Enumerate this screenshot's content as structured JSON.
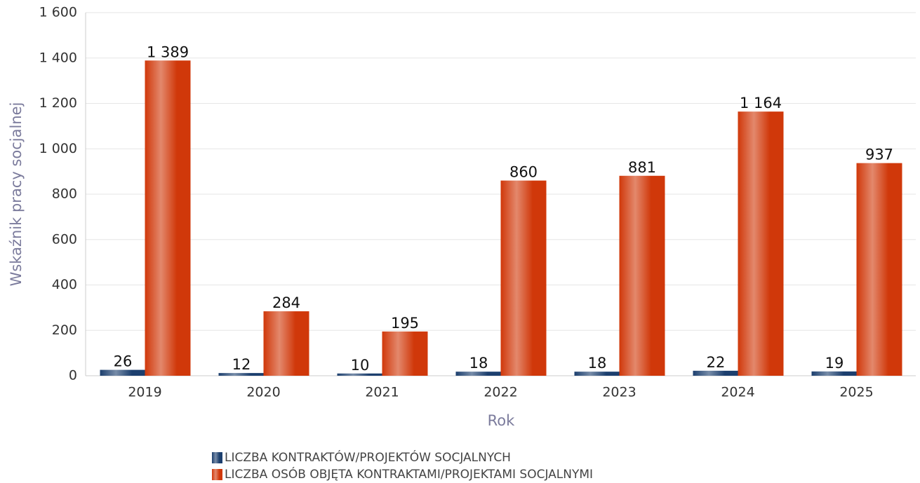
{
  "chart_data": {
    "type": "bar",
    "categories": [
      "2019",
      "2020",
      "2021",
      "2022",
      "2023",
      "2024",
      "2025"
    ],
    "series": [
      {
        "name": "LICZBA KONTRAKTÓW/PROJEKTÓW SOCJALNYCH",
        "color": "#1c3f6e",
        "values": [
          26,
          12,
          10,
          18,
          18,
          22,
          19
        ]
      },
      {
        "name": "LICZBA OSÓB OBJĘTA KONTRAKTAMI/PROJEKTAMI SOCJALNYMI",
        "color": "#d0380a",
        "values": [
          1389,
          284,
          195,
          860,
          881,
          1164,
          937
        ],
        "value_labels": [
          "1 389",
          "284",
          "195",
          "860",
          "881",
          "1 164",
          "937"
        ]
      }
    ],
    "xlabel": "Rok",
    "ylabel": "Wskaźnik pracy socjalnej",
    "ylim": [
      0,
      1600
    ],
    "yticks": [
      0,
      200,
      400,
      600,
      800,
      {
        "value": 1000,
        "label": "1 000"
      },
      {
        "value": 1200,
        "label": "1 200"
      },
      {
        "value": 1400,
        "label": "1 400"
      },
      {
        "value": 1600,
        "label": "1 600"
      }
    ],
    "grid": true
  }
}
